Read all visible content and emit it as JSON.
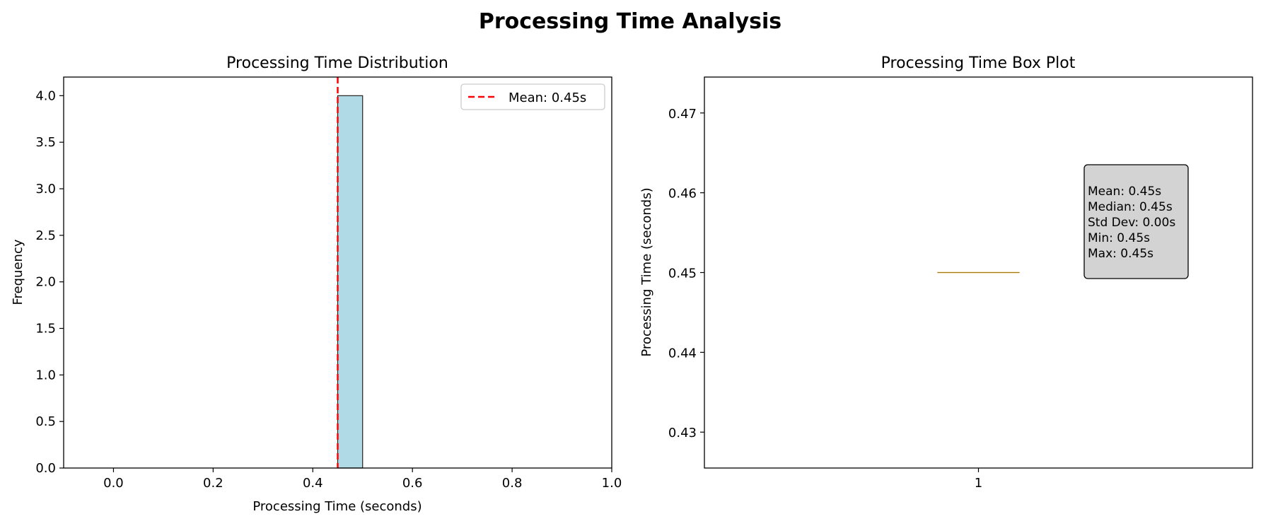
{
  "figure": {
    "title": "Processing Time Analysis"
  },
  "chart_data": [
    {
      "type": "bar",
      "subtype": "histogram",
      "title": "Processing Time Distribution",
      "xlabel": "Processing Time (seconds)",
      "ylabel": "Frequency",
      "xlim": [
        -0.1,
        1.0
      ],
      "ylim": [
        0,
        4.2
      ],
      "xticks": [
        "0.0",
        "0.2",
        "0.4",
        "0.6",
        "0.8",
        "1.0"
      ],
      "yticks": [
        "0.0",
        "0.5",
        "1.0",
        "1.5",
        "2.0",
        "2.5",
        "3.0",
        "3.5",
        "4.0"
      ],
      "bins": [
        {
          "start": 0.45,
          "end": 0.5,
          "count": 4
        }
      ],
      "bar_color": "#add8e6",
      "mean_line": {
        "value": 0.45,
        "label": "Mean: 0.45s",
        "color": "#ff0000",
        "style": "dashed"
      },
      "legend": {
        "position": "upper right",
        "entries": [
          "Mean: 0.45s"
        ]
      },
      "grid": false
    },
    {
      "type": "box",
      "title": "Processing Time Box Plot",
      "ylabel": "Processing Time (seconds)",
      "xticks": [
        "1"
      ],
      "ylim": [
        0.4255,
        0.4745
      ],
      "yticks": [
        "0.43",
        "0.44",
        "0.45",
        "0.46",
        "0.47"
      ],
      "box": {
        "min": 0.45,
        "q1": 0.45,
        "median": 0.45,
        "q3": 0.45,
        "max": 0.45
      },
      "median_color": "#daa520",
      "stats_box": {
        "lines": [
          "Mean: 0.45s",
          "Median: 0.45s",
          "Std Dev: 0.00s",
          "Min: 0.45s",
          "Max: 0.45s"
        ],
        "background": "#d3d3d3"
      },
      "grid": false
    }
  ]
}
